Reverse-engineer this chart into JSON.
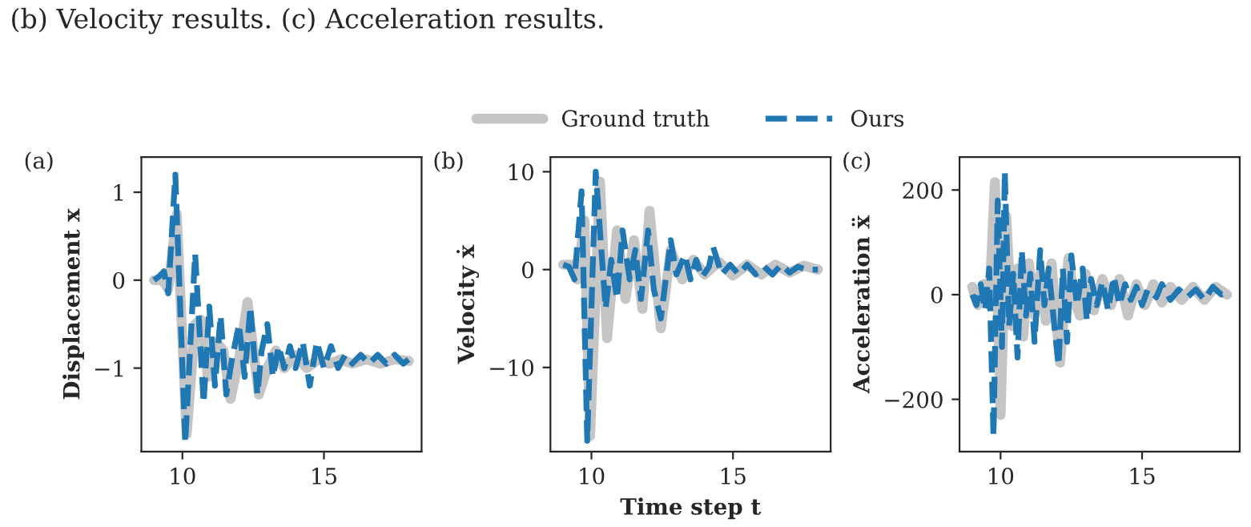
{
  "chart_data": [
    {
      "type": "line",
      "title": "(a)",
      "ylabel": "Displacement x",
      "annotations": [
        "(b) Velocity results. (c) Acceleration results."
      ],
      "xlim": [
        8.55,
        18.45
      ],
      "xticks": [
        10,
        15
      ],
      "ylim": [
        -1.95,
        1.4
      ],
      "yticks": [
        {
          "value": -1,
          "label": "−1"
        },
        0,
        1
      ],
      "legend": false,
      "series": [
        {
          "color": "#bfbfbf",
          "line_style": "solid",
          "x": [
            9.0,
            9.3,
            9.5,
            9.8,
            10.15,
            10.45,
            10.65,
            10.9,
            11.2,
            11.45,
            11.7,
            12.0,
            12.3,
            12.7,
            13.0,
            13.3,
            13.6,
            14.0,
            14.4,
            14.8,
            15.2,
            15.6,
            16.0,
            16.5,
            17.0,
            17.5,
            18.0
          ],
          "values": [
            0,
            0.0,
            -0.1,
            0.75,
            -1.75,
            -0.5,
            -0.45,
            -1.1,
            -0.7,
            -0.8,
            -1.35,
            -0.9,
            -0.25,
            -1.3,
            -1.0,
            -0.8,
            -1.0,
            -0.85,
            -1.0,
            -0.9,
            -0.95,
            -0.9,
            -0.95,
            -0.9,
            -0.95,
            -0.9,
            -0.92
          ]
        },
        {
          "color": "#1f77b4",
          "line_style": "dashed",
          "x": [
            9.0,
            9.2,
            9.35,
            9.5,
            9.75,
            10.1,
            10.45,
            10.75,
            10.95,
            11.15,
            11.35,
            11.55,
            11.75,
            12.0,
            12.2,
            12.4,
            12.65,
            12.8,
            13.0,
            13.2,
            13.4,
            13.6,
            13.8,
            14.0,
            14.25,
            14.5,
            14.75,
            15.0,
            15.25,
            15.5,
            15.75,
            16.0,
            16.3,
            16.6,
            16.9,
            17.2,
            17.5,
            17.8,
            18.0
          ],
          "values": [
            0,
            0.05,
            0.1,
            -0.15,
            1.2,
            -1.85,
            0.3,
            -1.4,
            -0.3,
            -1.2,
            -0.4,
            -1.3,
            -0.9,
            -0.5,
            -1.1,
            -0.3,
            -1.3,
            -0.8,
            -0.5,
            -1.1,
            -0.75,
            -1.0,
            -0.75,
            -1.0,
            -0.7,
            -1.2,
            -0.7,
            -1.0,
            -0.75,
            -1.0,
            -0.85,
            -0.95,
            -0.85,
            -0.95,
            -0.85,
            -0.95,
            -0.85,
            -0.95,
            -0.9
          ]
        }
      ]
    },
    {
      "type": "line",
      "title": "(b)",
      "xlabel": "Time step t",
      "ylabel": "Velocity ẋ",
      "xlim": [
        8.55,
        18.45
      ],
      "xticks": [
        10,
        15
      ],
      "ylim": [
        -18.6,
        11.5
      ],
      "yticks": [
        {
          "value": -10,
          "label": "−10"
        },
        0,
        10
      ],
      "legend": "top",
      "series": [
        {
          "name": "Ground truth",
          "color": "#bfbfbf",
          "line_style": "solid",
          "x": [
            9.0,
            9.3,
            9.5,
            9.75,
            9.95,
            10.3,
            10.55,
            10.9,
            11.2,
            11.5,
            11.8,
            12.05,
            12.45,
            12.8,
            13.2,
            13.6,
            14.0,
            14.5,
            15.0,
            15.5,
            16.0,
            16.5,
            17.0,
            17.5,
            18.0
          ],
          "values": [
            0.5,
            0.5,
            -1,
            5,
            -17,
            9,
            -7,
            4,
            -3,
            3,
            -4,
            6,
            -6,
            2,
            -1,
            1,
            -0.5,
            0.8,
            -0.6,
            0.5,
            -0.5,
            0.5,
            -0.3,
            0.4,
            0
          ]
        },
        {
          "name": "Ours",
          "color": "#1f77b4",
          "line_style": "dashed",
          "x": [
            9.0,
            9.2,
            9.4,
            9.65,
            9.85,
            10.15,
            10.5,
            10.7,
            10.9,
            11.1,
            11.35,
            11.55,
            11.75,
            12.0,
            12.2,
            12.45,
            12.8,
            13.0,
            13.3,
            13.5,
            13.7,
            13.9,
            14.15,
            14.3,
            14.6,
            14.9,
            15.2,
            15.5,
            15.8,
            16.1,
            16.4,
            16.7,
            17.0,
            17.3,
            17.6,
            18.0
          ],
          "values": [
            0.5,
            0.3,
            -1,
            8,
            -17.5,
            10,
            -4,
            1,
            -3,
            4,
            -1,
            2,
            -3,
            4,
            -2,
            -5,
            3,
            -0.5,
            1.5,
            -1,
            1,
            -0.8,
            0.3,
            2.3,
            -0.5,
            0.5,
            -0.5,
            0.5,
            -0.5,
            0.3,
            -0.5,
            0.5,
            -0.3,
            0.3,
            0,
            0
          ]
        }
      ]
    },
    {
      "type": "line",
      "title": "(c)",
      "ylabel": "Acceleration ẍ",
      "xlim": [
        8.55,
        18.45
      ],
      "xticks": [
        10,
        15
      ],
      "ylim": [
        -300,
        263
      ],
      "yticks": [
        {
          "value": -200,
          "label": "−200"
        },
        0,
        200
      ],
      "legend": false,
      "series": [
        {
          "color": "#bfbfbf",
          "line_style": "solid",
          "x": [
            9.0,
            9.2,
            9.4,
            9.6,
            9.8,
            10.0,
            10.2,
            10.4,
            10.6,
            10.8,
            11.0,
            11.2,
            11.4,
            11.6,
            11.8,
            12.1,
            12.4,
            12.6,
            12.8,
            13.0,
            13.3,
            13.6,
            13.9,
            14.2,
            14.5,
            14.8,
            15.1,
            15.4,
            15.7,
            16.0,
            16.4,
            16.8,
            17.2,
            17.6,
            18.0
          ],
          "values": [
            15,
            -20,
            20,
            -20,
            215,
            -230,
            150,
            -60,
            50,
            -80,
            60,
            -40,
            40,
            -50,
            60,
            -130,
            70,
            -10,
            -40,
            40,
            -30,
            30,
            -20,
            30,
            -40,
            20,
            -20,
            20,
            -15,
            15,
            -10,
            15,
            -10,
            15,
            0
          ]
        },
        {
          "color": "#1f77b4",
          "line_style": "dashed",
          "x": [
            9.0,
            9.15,
            9.3,
            9.45,
            9.6,
            9.75,
            9.9,
            10.05,
            10.15,
            10.3,
            10.45,
            10.6,
            10.75,
            10.9,
            11.05,
            11.2,
            11.4,
            11.55,
            11.7,
            11.9,
            12.05,
            12.2,
            12.35,
            12.5,
            12.7,
            12.9,
            13.05,
            13.2,
            13.4,
            13.6,
            13.8,
            14.0,
            14.2,
            14.4,
            14.6,
            14.8,
            15.0,
            15.2,
            15.5,
            15.7,
            16.0,
            16.3,
            16.6,
            16.9,
            17.2,
            17.5,
            17.8,
            18.0
          ],
          "values": [
            0,
            -20,
            20,
            -30,
            50,
            -270,
            180,
            -100,
            235,
            -60,
            40,
            -120,
            85,
            -40,
            40,
            -90,
            85,
            -20,
            50,
            -60,
            -135,
            50,
            -90,
            75,
            -20,
            50,
            -50,
            30,
            -20,
            25,
            -30,
            35,
            -20,
            20,
            -10,
            15,
            -20,
            10,
            -5,
            20,
            -10,
            10,
            -5,
            10,
            -10,
            15,
            0,
            5
          ]
        }
      ]
    }
  ]
}
